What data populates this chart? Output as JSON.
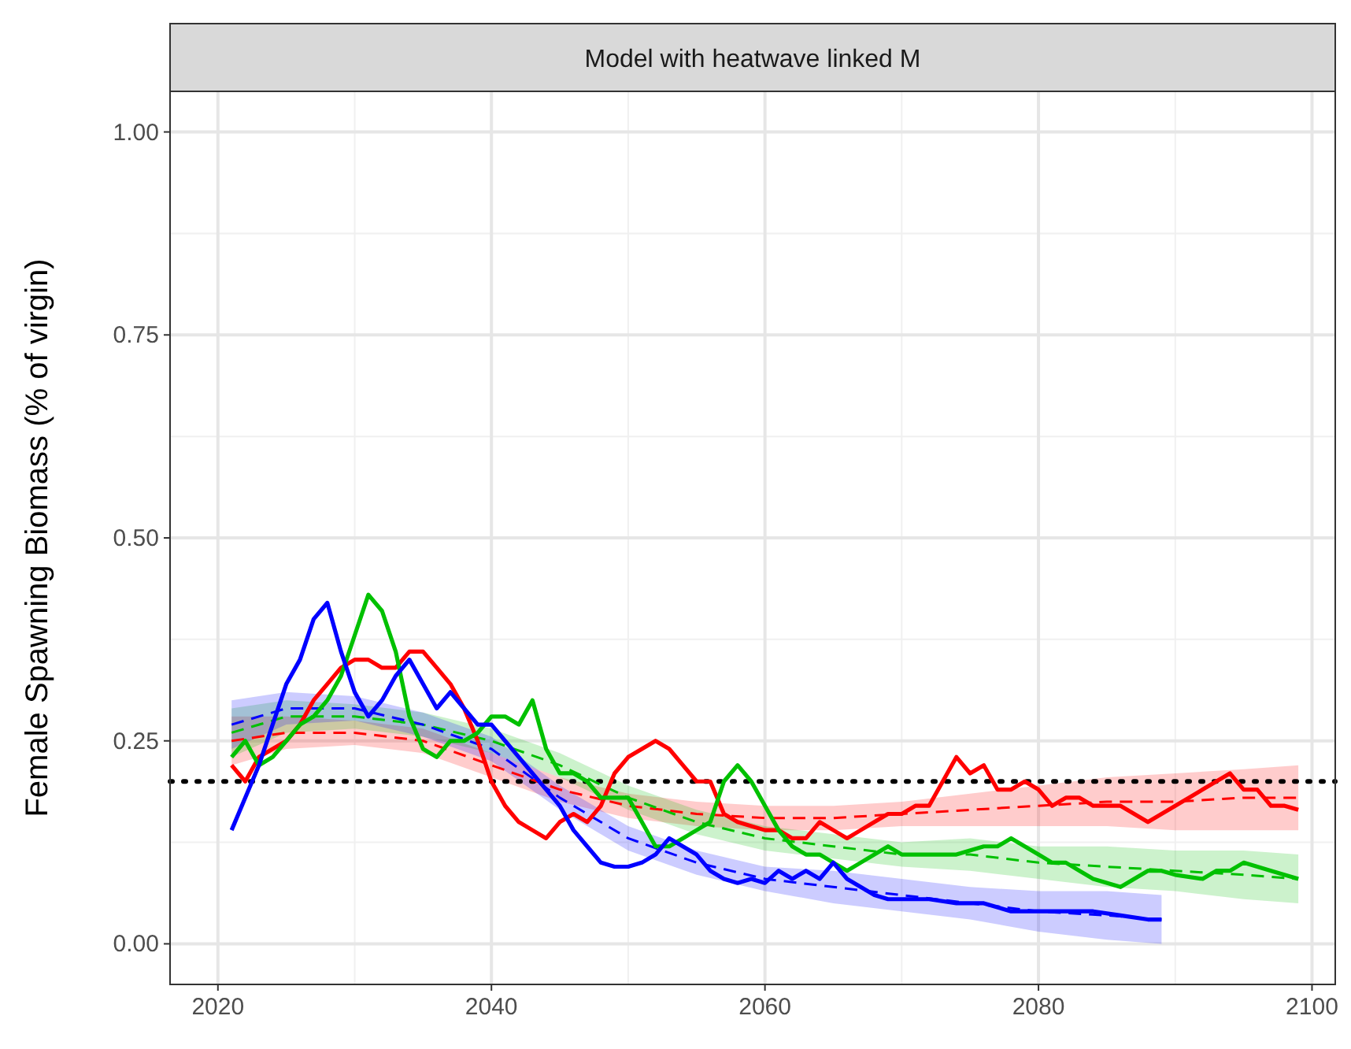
{
  "chart_data": {
    "type": "line",
    "title": "Model with heatwave linked M",
    "ylabel": "Female Spawning Biomass (% of virgin)",
    "xlim": [
      2016.5,
      2101.7
    ],
    "ylim": [
      -0.05,
      1.05
    ],
    "xticks": [
      2020,
      2040,
      2060,
      2080,
      2100
    ],
    "yticks": [
      {
        "value": 0,
        "label": "0.00"
      },
      {
        "value": 0.25,
        "label": "0.25"
      },
      {
        "value": 0.5,
        "label": "0.50"
      },
      {
        "value": 0.75,
        "label": "0.75"
      },
      {
        "value": 1,
        "label": "1.00"
      }
    ],
    "grid": true,
    "ref_lines": [
      {
        "axis": "y",
        "value": 0.2,
        "color": "#000000",
        "line_style": "dotted"
      }
    ],
    "series": [
      {
        "color": "#ff0000",
        "line_style": "dashed",
        "x": [
          2021,
          2025,
          2030,
          2035,
          2040,
          2045,
          2050,
          2055,
          2060,
          2065,
          2070,
          2075,
          2080,
          2085,
          2090,
          2095,
          2099
        ],
        "values": [
          0.25,
          0.26,
          0.26,
          0.25,
          0.22,
          0.19,
          0.17,
          0.16,
          0.155,
          0.155,
          0.16,
          0.165,
          0.17,
          0.175,
          0.175,
          0.18,
          0.18
        ],
        "lower": [
          0.22,
          0.24,
          0.245,
          0.235,
          0.205,
          0.175,
          0.155,
          0.145,
          0.14,
          0.14,
          0.145,
          0.145,
          0.145,
          0.145,
          0.14,
          0.14,
          0.14
        ],
        "upper": [
          0.28,
          0.28,
          0.275,
          0.265,
          0.235,
          0.205,
          0.185,
          0.175,
          0.17,
          0.17,
          0.175,
          0.185,
          0.195,
          0.205,
          0.21,
          0.215,
          0.22
        ]
      },
      {
        "color": "#00c000",
        "line_style": "dashed",
        "x": [
          2021,
          2025,
          2030,
          2035,
          2040,
          2045,
          2050,
          2055,
          2060,
          2065,
          2070,
          2075,
          2080,
          2085,
          2090,
          2095,
          2099
        ],
        "values": [
          0.26,
          0.28,
          0.28,
          0.27,
          0.25,
          0.22,
          0.18,
          0.15,
          0.13,
          0.12,
          0.11,
          0.11,
          0.1,
          0.095,
          0.09,
          0.085,
          0.08
        ],
        "lower": [
          0.23,
          0.26,
          0.265,
          0.255,
          0.235,
          0.205,
          0.165,
          0.135,
          0.115,
          0.105,
          0.095,
          0.09,
          0.08,
          0.07,
          0.065,
          0.055,
          0.05
        ],
        "upper": [
          0.29,
          0.3,
          0.295,
          0.285,
          0.265,
          0.235,
          0.195,
          0.165,
          0.145,
          0.135,
          0.125,
          0.13,
          0.12,
          0.12,
          0.115,
          0.115,
          0.11
        ]
      },
      {
        "color": "#0000ff",
        "line_style": "dashed",
        "x": [
          2021,
          2025,
          2030,
          2035,
          2040,
          2045,
          2050,
          2055,
          2060,
          2065,
          2070,
          2075,
          2080,
          2085,
          2089
        ],
        "values": [
          0.27,
          0.29,
          0.29,
          0.27,
          0.24,
          0.18,
          0.13,
          0.1,
          0.08,
          0.07,
          0.06,
          0.05,
          0.04,
          0.035,
          0.03
        ],
        "lower": [
          0.24,
          0.27,
          0.275,
          0.255,
          0.225,
          0.165,
          0.115,
          0.085,
          0.065,
          0.05,
          0.04,
          0.03,
          0.015,
          0.005,
          0.0
        ],
        "upper": [
          0.3,
          0.31,
          0.305,
          0.285,
          0.255,
          0.195,
          0.145,
          0.115,
          0.095,
          0.09,
          0.08,
          0.07,
          0.065,
          0.065,
          0.06
        ]
      },
      {
        "color": "#ff0000",
        "x": [
          2021,
          2022,
          2023,
          2024,
          2025,
          2026,
          2027,
          2028,
          2029,
          2030,
          2031,
          2032,
          2033,
          2034,
          2035,
          2036,
          2037,
          2038,
          2039,
          2040,
          2041,
          2042,
          2043,
          2044,
          2045,
          2046,
          2047,
          2048,
          2049,
          2050,
          2051,
          2052,
          2053,
          2054,
          2055,
          2056,
          2057,
          2058,
          2059,
          2060,
          2061,
          2062,
          2063,
          2064,
          2065,
          2066,
          2067,
          2068,
          2069,
          2070,
          2071,
          2072,
          2073,
          2074,
          2075,
          2076,
          2077,
          2078,
          2079,
          2080,
          2081,
          2082,
          2083,
          2084,
          2085,
          2086,
          2087,
          2088,
          2089,
          2090,
          2091,
          2092,
          2093,
          2094,
          2095,
          2096,
          2097,
          2098,
          2099
        ],
        "values": [
          0.22,
          0.2,
          0.23,
          0.24,
          0.25,
          0.27,
          0.3,
          0.32,
          0.34,
          0.35,
          0.35,
          0.34,
          0.34,
          0.36,
          0.36,
          0.34,
          0.32,
          0.29,
          0.25,
          0.2,
          0.17,
          0.15,
          0.14,
          0.13,
          0.15,
          0.16,
          0.15,
          0.17,
          0.21,
          0.23,
          0.24,
          0.25,
          0.24,
          0.22,
          0.2,
          0.2,
          0.16,
          0.15,
          0.145,
          0.14,
          0.14,
          0.13,
          0.13,
          0.15,
          0.14,
          0.13,
          0.14,
          0.15,
          0.16,
          0.16,
          0.17,
          0.17,
          0.2,
          0.23,
          0.21,
          0.22,
          0.19,
          0.19,
          0.2,
          0.19,
          0.17,
          0.18,
          0.18,
          0.17,
          0.17,
          0.17,
          0.16,
          0.15,
          0.16,
          0.17,
          0.18,
          0.19,
          0.2,
          0.21,
          0.19,
          0.19,
          0.17,
          0.17,
          0.165
        ]
      },
      {
        "color": "#00c000",
        "x": [
          2021,
          2022,
          2023,
          2024,
          2025,
          2026,
          2027,
          2028,
          2029,
          2030,
          2031,
          2032,
          2033,
          2034,
          2035,
          2036,
          2037,
          2038,
          2039,
          2040,
          2041,
          2042,
          2043,
          2044,
          2045,
          2046,
          2047,
          2048,
          2049,
          2050,
          2051,
          2052,
          2053,
          2054,
          2055,
          2056,
          2057,
          2058,
          2059,
          2060,
          2061,
          2062,
          2063,
          2064,
          2065,
          2066,
          2067,
          2068,
          2069,
          2070,
          2072,
          2074,
          2076,
          2077,
          2078,
          2079,
          2080,
          2081,
          2082,
          2083,
          2084,
          2086,
          2087,
          2088,
          2089,
          2090,
          2092,
          2093,
          2094,
          2095,
          2097,
          2099
        ],
        "values": [
          0.23,
          0.25,
          0.22,
          0.23,
          0.25,
          0.27,
          0.28,
          0.3,
          0.33,
          0.38,
          0.43,
          0.41,
          0.36,
          0.28,
          0.24,
          0.23,
          0.25,
          0.25,
          0.26,
          0.28,
          0.28,
          0.27,
          0.3,
          0.24,
          0.21,
          0.21,
          0.2,
          0.18,
          0.18,
          0.18,
          0.15,
          0.12,
          0.12,
          0.13,
          0.14,
          0.15,
          0.2,
          0.22,
          0.2,
          0.17,
          0.14,
          0.12,
          0.11,
          0.11,
          0.1,
          0.09,
          0.1,
          0.11,
          0.12,
          0.11,
          0.11,
          0.11,
          0.12,
          0.12,
          0.13,
          0.12,
          0.11,
          0.1,
          0.1,
          0.09,
          0.08,
          0.07,
          0.08,
          0.09,
          0.09,
          0.085,
          0.08,
          0.09,
          0.09,
          0.1,
          0.09,
          0.08
        ]
      },
      {
        "color": "#0000ff",
        "x": [
          2021,
          2023,
          2025,
          2026,
          2027,
          2028,
          2029,
          2030,
          2031,
          2032,
          2033,
          2034,
          2035,
          2036,
          2037,
          2038,
          2039,
          2040,
          2041,
          2042,
          2043,
          2044,
          2045,
          2046,
          2047,
          2048,
          2049,
          2050,
          2051,
          2052,
          2053,
          2054,
          2055,
          2056,
          2057,
          2058,
          2059,
          2060,
          2061,
          2062,
          2063,
          2064,
          2065,
          2066,
          2067,
          2068,
          2069,
          2070,
          2072,
          2074,
          2076,
          2078,
          2080,
          2082,
          2084,
          2086,
          2088,
          2089
        ],
        "values": [
          0.14,
          0.22,
          0.32,
          0.35,
          0.4,
          0.42,
          0.36,
          0.31,
          0.28,
          0.3,
          0.33,
          0.35,
          0.32,
          0.29,
          0.31,
          0.29,
          0.27,
          0.27,
          0.25,
          0.23,
          0.21,
          0.19,
          0.17,
          0.14,
          0.12,
          0.1,
          0.095,
          0.095,
          0.1,
          0.11,
          0.13,
          0.12,
          0.11,
          0.09,
          0.08,
          0.075,
          0.08,
          0.075,
          0.09,
          0.08,
          0.09,
          0.08,
          0.1,
          0.08,
          0.07,
          0.06,
          0.055,
          0.055,
          0.055,
          0.05,
          0.05,
          0.04,
          0.04,
          0.04,
          0.04,
          0.035,
          0.03,
          0.03
        ]
      }
    ]
  }
}
